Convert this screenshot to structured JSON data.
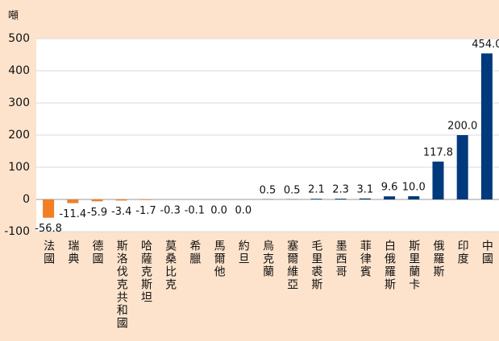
{
  "chart_data": {
    "type": "bar",
    "y_label": "噸",
    "categories": [
      "法國",
      "瑞典",
      "德國",
      "斯洛伐克共和國",
      "哈薩克斯坦",
      "莫桑比克",
      "希臘",
      "馬爾他",
      "約旦",
      "烏克蘭",
      "塞爾維亞",
      "毛里裘斯",
      "墨西哥",
      "菲律賓",
      "白俄羅斯",
      "斯里蘭卡",
      "俄羅斯",
      "印度",
      "中國"
    ],
    "values": [
      -56.8,
      -11.4,
      -5.9,
      -3.4,
      -1.7,
      -0.3,
      -0.1,
      0,
      0,
      0.5,
      0.5,
      2.1,
      2.3,
      3.1,
      9.6,
      10,
      117.8,
      200,
      454
    ],
    "value_labels": [
      "-56.8",
      "-11.4",
      "-5.9",
      "-3.4",
      "-1.7",
      "-0.3",
      "-0.1",
      "0.0",
      "0.0",
      "0.5",
      "0.5",
      "2.1",
      "2.3",
      "3.1",
      "9.6",
      "10.0",
      "117.8",
      "200.0",
      "454.0"
    ],
    "color": "#003a7d",
    "negative_color": "#f07f26",
    "ylim": [
      -100,
      500
    ],
    "yticks": [
      -100,
      0,
      100,
      200,
      300,
      400,
      500
    ],
    "grid": true
  }
}
